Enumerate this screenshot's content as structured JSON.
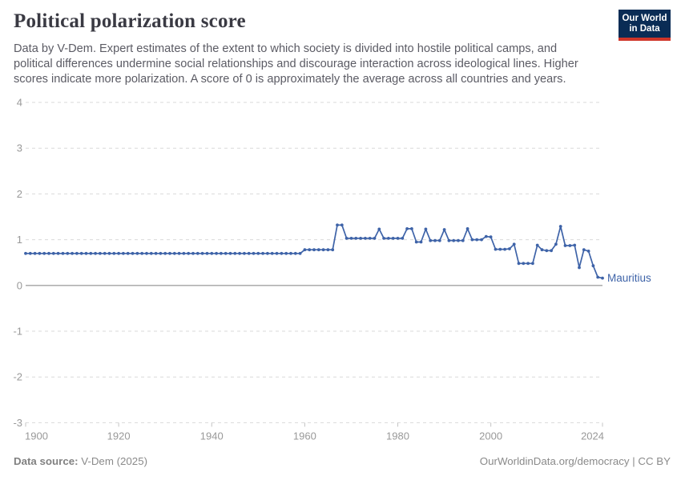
{
  "header": {
    "title": "Political polarization score",
    "subtitle_lines": [
      "Data by V-Dem. Expert estimates of the extent to which society is divided into hostile political camps, and",
      "political differences undermine social relationships and discourage interaction across ideological lines. Higher",
      "scores indicate more polarization. A score of 0 is approximately the average across all countries and years."
    ],
    "logo": {
      "line1": "Our World",
      "line2": "in Data"
    }
  },
  "chart_data": {
    "type": "line",
    "title": "Political polarization score",
    "xlabel": "",
    "ylabel": "",
    "xlim": [
      1900,
      2024
    ],
    "ylim": [
      -3,
      4
    ],
    "x_ticks": [
      1900,
      1920,
      1940,
      1960,
      1980,
      2000,
      2024
    ],
    "y_ticks": [
      4,
      3,
      2,
      1,
      0,
      -1,
      -2,
      -3
    ],
    "grid": "horizontal-dashed",
    "zero_line": true,
    "legend_position": "end-of-line-label",
    "x_start": 1900,
    "x_step": 1,
    "series": [
      {
        "name": "Mauritius",
        "color": "#3e63a8",
        "values": [
          0.7,
          0.7,
          0.7,
          0.7,
          0.7,
          0.7,
          0.7,
          0.7,
          0.7,
          0.7,
          0.7,
          0.7,
          0.7,
          0.7,
          0.7,
          0.7,
          0.7,
          0.7,
          0.7,
          0.7,
          0.7,
          0.7,
          0.7,
          0.7,
          0.7,
          0.7,
          0.7,
          0.7,
          0.7,
          0.7,
          0.7,
          0.7,
          0.7,
          0.7,
          0.7,
          0.7,
          0.7,
          0.7,
          0.7,
          0.7,
          0.7,
          0.7,
          0.7,
          0.7,
          0.7,
          0.7,
          0.7,
          0.7,
          0.7,
          0.7,
          0.7,
          0.7,
          0.7,
          0.7,
          0.7,
          0.7,
          0.7,
          0.7,
          0.7,
          0.7,
          0.78,
          0.78,
          0.78,
          0.78,
          0.78,
          0.78,
          0.78,
          1.32,
          1.32,
          1.03,
          1.03,
          1.03,
          1.03,
          1.03,
          1.03,
          1.03,
          1.23,
          1.03,
          1.03,
          1.03,
          1.03,
          1.03,
          1.24,
          1.24,
          0.95,
          0.95,
          1.23,
          0.98,
          0.98,
          0.98,
          1.22,
          0.98,
          0.98,
          0.98,
          0.98,
          1.24,
          1.0,
          1.0,
          1.0,
          1.07,
          1.06,
          0.79,
          0.79,
          0.79,
          0.8,
          0.9,
          0.48,
          0.48,
          0.48,
          0.48,
          0.88,
          0.78,
          0.76,
          0.76,
          0.9,
          1.29,
          0.87,
          0.87,
          0.88,
          0.39,
          0.78,
          0.75,
          0.43,
          0.18,
          0.16
        ]
      }
    ]
  },
  "footer": {
    "source_label": "Data source:",
    "source_value": " V-Dem (2025)",
    "credit": "OurWorldinData.org/democracy | CC BY"
  },
  "colors": {
    "series_blue": "#3e63a8",
    "grid": "#dadada",
    "zero_line": "#a3a3a3",
    "tick_mark": "#c4c4c4",
    "axis_text": "#999999",
    "logo_bg": "#0a2c55",
    "logo_red": "#cf3529"
  }
}
